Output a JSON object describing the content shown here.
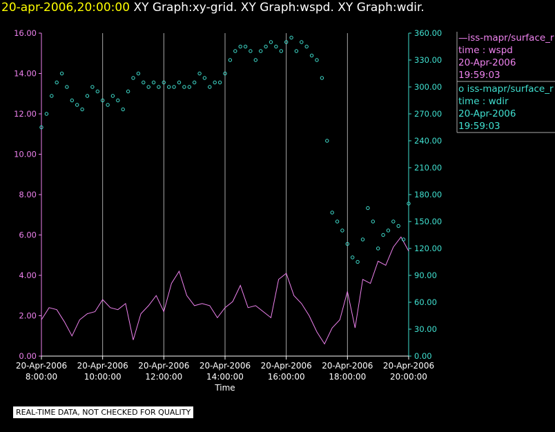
{
  "header": {
    "timestamp": "20-apr-2006,20:00:00",
    "graphs": "XY Graph:xy-grid.  XY Graph:wspd.  XY Graph:wdir."
  },
  "legend": [
    {
      "prefix": "—",
      "name": "iss-mapr/surface_r",
      "var": "time : wspd",
      "date": "20-Apr-2006",
      "time": "19:59:03",
      "color": "#ee82ee"
    },
    {
      "prefix": "o ",
      "name": "iss-mapr/surface_r",
      "var": "time : wdir",
      "date": "20-Apr-2006",
      "time": "19:59:03",
      "color": "#40e0d0"
    }
  ],
  "disclaimer": "REAL-TIME DATA, NOT CHECKED FOR QUALITY",
  "colors": {
    "wspd": "#ee82ee",
    "wdir": "#40e0d0",
    "grid": "#aaaaaa",
    "axis_text": "#ffffff"
  },
  "chart_data": {
    "type": "line",
    "xlabel": "Time",
    "x_ticks": [
      {
        "date": "20-Apr-2006",
        "time": "8:00:00"
      },
      {
        "date": "20-Apr-2006",
        "time": "10:00:00"
      },
      {
        "date": "20-Apr-2006",
        "time": "12:00:00"
      },
      {
        "date": "20-Apr-2006",
        "time": "14:00:00"
      },
      {
        "date": "20-Apr-2006",
        "time": "16:00:00"
      },
      {
        "date": "20-Apr-2006",
        "time": "18:00:00"
      },
      {
        "date": "20-Apr-2006",
        "time": "20:00:00"
      }
    ],
    "xlim": [
      "08:00",
      "20:00"
    ],
    "grid": "vertical",
    "y_left": {
      "lim": [
        0,
        16
      ],
      "ticks": [
        "0.00",
        "2.00",
        "4.00",
        "6.00",
        "8.00",
        "10.00",
        "12.00",
        "14.00",
        "16.00"
      ]
    },
    "y_right": {
      "lim": [
        0,
        360
      ],
      "ticks": [
        "0.00",
        "30.00",
        "60.00",
        "90.00",
        "120.00",
        "150.00",
        "180.00",
        "210.00",
        "240.00",
        "270.00",
        "300.00",
        "330.00",
        "360.00"
      ]
    },
    "series": [
      {
        "name": "iss-mapr/surface_r time : wspd",
        "style": "line",
        "axis": "left",
        "x": [
          "08:00",
          "08:15",
          "08:30",
          "08:45",
          "09:00",
          "09:15",
          "09:30",
          "09:45",
          "10:00",
          "10:15",
          "10:30",
          "10:45",
          "11:00",
          "11:15",
          "11:30",
          "11:45",
          "12:00",
          "12:15",
          "12:30",
          "12:45",
          "13:00",
          "13:15",
          "13:30",
          "13:45",
          "14:00",
          "14:15",
          "14:30",
          "14:45",
          "15:00",
          "15:15",
          "15:30",
          "15:45",
          "16:00",
          "16:15",
          "16:30",
          "16:45",
          "17:00",
          "17:15",
          "17:30",
          "17:45",
          "18:00",
          "18:15",
          "18:30",
          "18:45",
          "19:00",
          "19:15",
          "19:30",
          "19:45",
          "20:00"
        ],
        "y": [
          1.8,
          2.4,
          2.3,
          1.7,
          1.0,
          1.8,
          2.1,
          2.2,
          2.8,
          2.4,
          2.3,
          2.6,
          0.8,
          2.1,
          2.5,
          3.0,
          2.2,
          3.6,
          4.2,
          3.0,
          2.5,
          2.6,
          2.5,
          1.9,
          2.4,
          2.7,
          3.5,
          2.4,
          2.5,
          2.2,
          1.9,
          3.8,
          4.1,
          3.0,
          2.6,
          2.0,
          1.2,
          0.6,
          1.4,
          1.8,
          3.2,
          1.4,
          3.8,
          3.6,
          4.7,
          4.5,
          5.4,
          5.9,
          5.2
        ]
      },
      {
        "name": "iss-mapr/surface_r time : wdir",
        "style": "scatter",
        "axis": "right",
        "x": [
          "08:00",
          "08:10",
          "08:20",
          "08:30",
          "08:40",
          "08:50",
          "09:00",
          "09:10",
          "09:20",
          "09:30",
          "09:40",
          "09:50",
          "10:00",
          "10:10",
          "10:20",
          "10:30",
          "10:40",
          "10:50",
          "11:00",
          "11:10",
          "11:20",
          "11:30",
          "11:40",
          "11:50",
          "12:00",
          "12:10",
          "12:20",
          "12:30",
          "12:40",
          "12:50",
          "13:00",
          "13:10",
          "13:20",
          "13:30",
          "13:40",
          "13:50",
          "14:00",
          "14:10",
          "14:20",
          "14:30",
          "14:40",
          "14:50",
          "15:00",
          "15:10",
          "15:20",
          "15:30",
          "15:40",
          "15:50",
          "16:00",
          "16:10",
          "16:20",
          "16:30",
          "16:40",
          "16:50",
          "17:00",
          "17:10",
          "17:20",
          "17:30",
          "17:40",
          "17:50",
          "18:00",
          "18:10",
          "18:20",
          "18:30",
          "18:40",
          "18:50",
          "19:00",
          "19:10",
          "19:20",
          "19:30",
          "19:40",
          "19:50",
          "20:00"
        ],
        "y": [
          255,
          270,
          290,
          305,
          315,
          300,
          285,
          280,
          275,
          290,
          300,
          295,
          285,
          280,
          290,
          285,
          275,
          295,
          310,
          315,
          305,
          300,
          305,
          300,
          305,
          300,
          300,
          305,
          300,
          300,
          305,
          315,
          310,
          300,
          305,
          305,
          315,
          330,
          340,
          345,
          345,
          340,
          330,
          340,
          345,
          350,
          345,
          340,
          350,
          355,
          340,
          350,
          345,
          335,
          330,
          310,
          240,
          160,
          150,
          140,
          125,
          110,
          105,
          130,
          165,
          150,
          120,
          135,
          140,
          150,
          145,
          130,
          170
        ]
      }
    ]
  }
}
